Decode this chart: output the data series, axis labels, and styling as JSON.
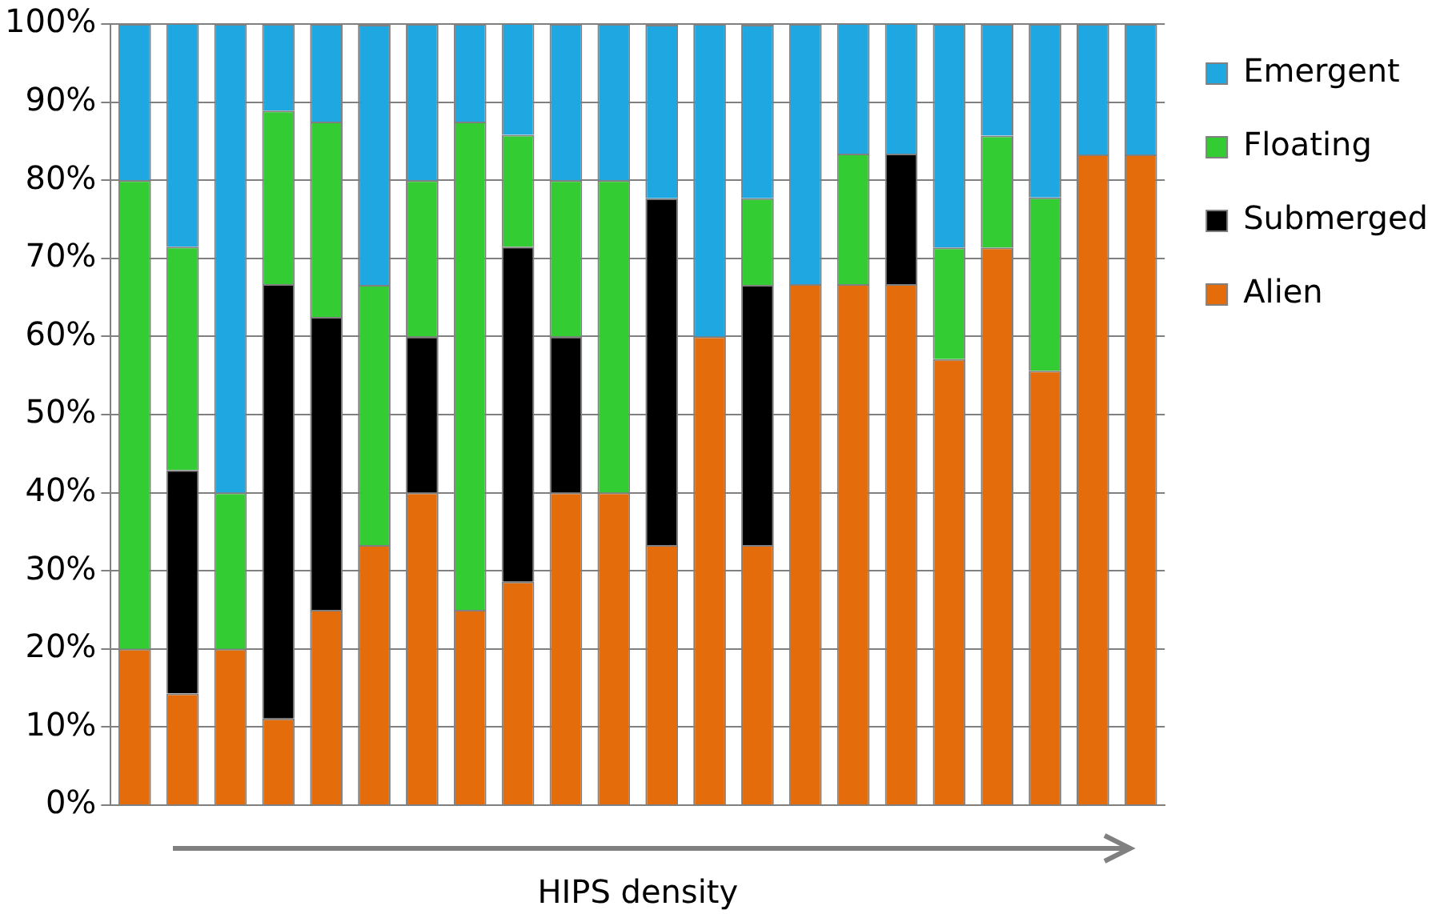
{
  "chart_data": {
    "type": "bar",
    "stacked": true,
    "xlabel": "HIPS density",
    "categories": [
      null,
      null,
      null,
      null,
      null,
      null,
      null,
      null,
      null,
      null,
      null,
      null,
      null,
      null,
      null,
      null,
      null,
      null,
      null,
      null,
      null,
      null
    ],
    "series": [
      {
        "name": "Alien",
        "color": "#e46c0a",
        "values": [
          20,
          14.3,
          20,
          11.1,
          25,
          33.3,
          40,
          25,
          28.6,
          40,
          40,
          33.3,
          60,
          33.3,
          66.7,
          66.7,
          66.7,
          57.1,
          71.4,
          55.6,
          83.3,
          83.3
        ]
      },
      {
        "name": "Submerged",
        "color": "#000000",
        "values": [
          0,
          28.6,
          0,
          55.6,
          37.5,
          0,
          20,
          0,
          42.9,
          20,
          0,
          44.4,
          0,
          33.3,
          0,
          0,
          16.7,
          0,
          0,
          0,
          0,
          0
        ]
      },
      {
        "name": "Floating",
        "color": "#33cc33",
        "values": [
          60,
          28.6,
          20,
          22.2,
          25,
          33.3,
          20,
          62.5,
          14.3,
          20,
          40,
          0,
          0,
          11.1,
          0,
          16.7,
          0,
          14.3,
          14.3,
          22.2,
          0,
          0
        ]
      },
      {
        "name": "Emergent",
        "color": "#1ea7e1",
        "values": [
          20,
          28.6,
          60,
          11.1,
          12.5,
          33.3,
          20,
          12.5,
          14.3,
          20,
          20,
          22.2,
          40,
          22.2,
          33.3,
          16.7,
          16.7,
          28.6,
          14.3,
          22.2,
          16.7,
          16.7
        ]
      }
    ],
    "ylim": [
      0,
      100
    ],
    "yticks": [
      {
        "value": 0,
        "label": "0%"
      },
      {
        "value": 10,
        "label": "10%"
      },
      {
        "value": 20,
        "label": "20%"
      },
      {
        "value": 30,
        "label": "30%"
      },
      {
        "value": 40,
        "label": "40%"
      },
      {
        "value": 50,
        "label": "50%"
      },
      {
        "value": 60,
        "label": "60%"
      },
      {
        "value": 70,
        "label": "70%"
      },
      {
        "value": 80,
        "label": "80%"
      },
      {
        "value": 90,
        "label": "90%"
      },
      {
        "value": 100,
        "label": "100%"
      }
    ],
    "grid": "y",
    "legend": "right",
    "tick_labels": "y"
  }
}
